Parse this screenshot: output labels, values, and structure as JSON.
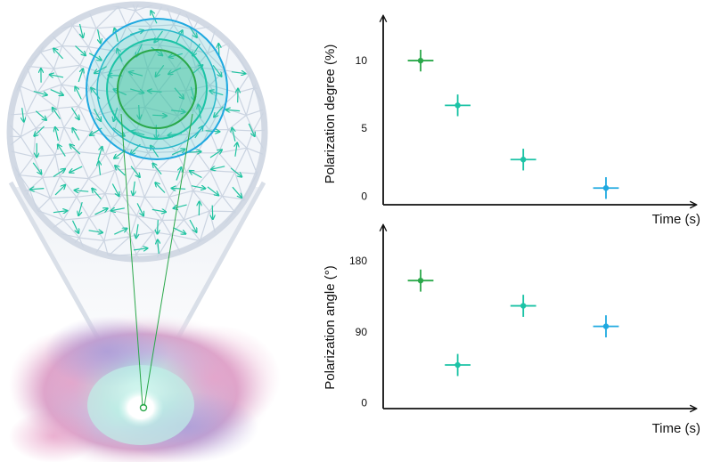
{
  "colors": {
    "green": "#2aa84a",
    "teal": "#1cc3a6",
    "sky": "#1fa9e0",
    "axis": "#111111",
    "cell_lines": "#c9d3e0",
    "arrows": "#1fc3a0"
  },
  "chart_data": [
    {
      "type": "scatter",
      "ylabel": "Polarization degree (%)",
      "xlabel": "Time (s)",
      "yticks": [
        0,
        5,
        10
      ],
      "ylim": [
        -0.5,
        12.5
      ],
      "xlim": [
        0,
        10
      ],
      "x": [
        1,
        2.3,
        4.6,
        7.5
      ],
      "y": [
        10,
        6.7,
        2.7,
        0.6
      ],
      "yerr": [
        0.8,
        0.8,
        0.8,
        0.8
      ],
      "xerr": [
        0.45,
        0.45,
        0.45,
        0.45
      ],
      "point_colors": [
        "#2aa84a",
        "#1cc3a6",
        "#1cc3a6",
        "#1fa9e0"
      ]
    },
    {
      "type": "scatter",
      "ylabel": "Polarization angle (°)",
      "xlabel": "Time (s)",
      "yticks": [
        0,
        90,
        180
      ],
      "ylim": [
        -5,
        215
      ],
      "xlim": [
        0,
        10
      ],
      "x": [
        1,
        2.3,
        4.6,
        7.5
      ],
      "y": [
        155,
        48,
        123,
        97
      ],
      "yerr": [
        14,
        14,
        14,
        14
      ],
      "xerr": [
        0.45,
        0.45,
        0.45,
        0.45
      ],
      "point_colors": [
        "#2aa84a",
        "#1cc3a6",
        "#1cc3a6",
        "#1fa9e0"
      ]
    }
  ]
}
